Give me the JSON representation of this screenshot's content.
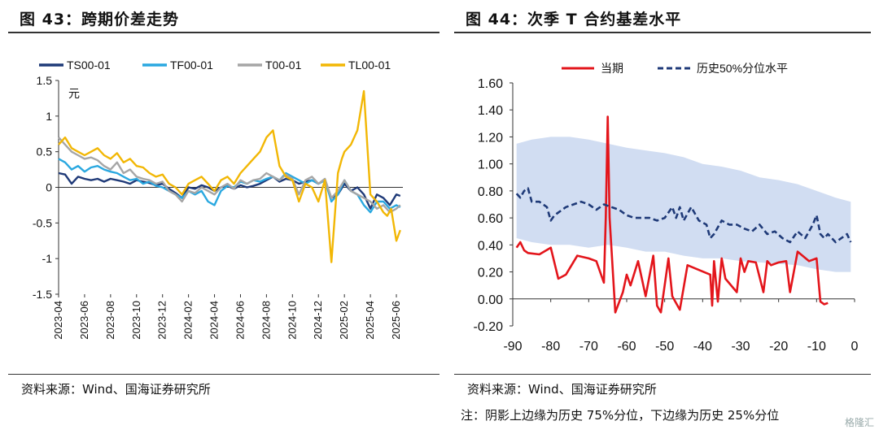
{
  "left": {
    "title": "图 43：跨期价差走势",
    "source": "资料来源：Wind、国海证券研究所"
  },
  "right": {
    "title": "图 44：次季 T 合约基差水平",
    "source": "资料来源：Wind、国海证券研究所",
    "note": "注：阴影上边缘为历史 75%分位，下边缘为历史 25%分位"
  },
  "watermark": "格隆汇",
  "chart_data": [
    {
      "type": "line",
      "unit_label": "元",
      "ylim": [
        -1.5,
        1.5
      ],
      "yticks": [
        -1.5,
        -1,
        -0.5,
        0,
        0.5,
        1,
        1.5
      ],
      "ytick_labels": [
        "-1.5",
        "-1",
        "-0.5",
        "0",
        "0.5",
        "1",
        "1.5"
      ],
      "xlim": [
        0,
        26.5
      ],
      "xticks": [
        0,
        2,
        4,
        6,
        8,
        10,
        12,
        14,
        16,
        18,
        20,
        22,
        24,
        26
      ],
      "xtick_labels": [
        "2023-04",
        "2023-06",
        "2023-08",
        "2023-10",
        "2023-12",
        "2024-02",
        "2024-04",
        "2024-06",
        "2024-08",
        "2024-10",
        "2024-12",
        "2025-02",
        "2025-04",
        "2025-06"
      ],
      "legend_position": "top",
      "series": [
        {
          "name": "TS00-01",
          "color": "#1f3a78",
          "x": [
            0,
            0.5,
            1,
            1.5,
            2,
            2.5,
            3,
            3.5,
            4,
            4.5,
            5,
            5.5,
            6,
            6.5,
            7,
            7.5,
            8,
            8.5,
            9,
            9.5,
            10,
            10.5,
            11,
            11.5,
            12,
            12.5,
            13,
            13.5,
            14,
            14.5,
            15,
            15.5,
            16,
            16.5,
            17,
            17.5,
            18,
            18.5,
            19,
            19.5,
            20,
            20.5,
            21,
            21.5,
            22,
            22.5,
            23,
            23.5,
            24,
            24.5,
            25,
            25.5,
            26,
            26.3
          ],
          "y": [
            0.2,
            0.18,
            0.05,
            0.15,
            0.12,
            0.1,
            0.12,
            0.08,
            0.12,
            0.1,
            0.08,
            0.05,
            0.1,
            0.08,
            0.06,
            0.03,
            0.05,
            -0.02,
            -0.08,
            -0.15,
            0,
            -0.02,
            0.03,
            0,
            -0.05,
            0,
            0.02,
            -0.02,
            0.03,
            0,
            0.02,
            0.05,
            0.1,
            0.15,
            0.08,
            0.12,
            0.1,
            0.05,
            0.08,
            0.1,
            0.05,
            0.1,
            -0.15,
            -0.1,
            0.05,
            -0.05,
            0,
            -0.1,
            -0.3,
            -0.1,
            -0.15,
            -0.25,
            -0.1,
            -0.12
          ]
        },
        {
          "name": "TF00-01",
          "color": "#2aa8e0",
          "x": [
            0,
            0.5,
            1,
            1.5,
            2,
            2.5,
            3,
            3.5,
            4,
            4.5,
            5,
            5.5,
            6,
            6.5,
            7,
            7.5,
            8,
            8.5,
            9,
            9.5,
            10,
            10.5,
            11,
            11.5,
            12,
            12.5,
            13,
            13.5,
            14,
            14.5,
            15,
            15.5,
            16,
            16.5,
            17,
            17.5,
            18,
            18.5,
            19,
            19.5,
            20,
            20.5,
            21,
            21.5,
            22,
            22.5,
            23,
            23.5,
            24,
            24.5,
            25,
            25.5,
            26,
            26.3
          ],
          "y": [
            0.4,
            0.35,
            0.25,
            0.3,
            0.22,
            0.28,
            0.3,
            0.25,
            0.22,
            0.2,
            0.15,
            0.1,
            0.12,
            0.05,
            0.08,
            0.02,
            0,
            -0.05,
            -0.1,
            -0.15,
            -0.05,
            -0.1,
            -0.05,
            -0.2,
            -0.25,
            -0.05,
            0.02,
            0,
            0.08,
            0.05,
            0.1,
            0.08,
            0.12,
            0.15,
            0.1,
            0.2,
            0.15,
            0.1,
            0.05,
            0.1,
            0.05,
            0.1,
            -0.2,
            -0.1,
            0.1,
            -0.05,
            -0.1,
            -0.25,
            -0.35,
            -0.2,
            -0.2,
            -0.3,
            -0.25,
            -0.28
          ]
        },
        {
          "name": "T00-01",
          "color": "#a6a6a6",
          "x": [
            0,
            0.5,
            1,
            1.5,
            2,
            2.5,
            3,
            3.5,
            4,
            4.5,
            5,
            5.5,
            6,
            6.5,
            7,
            7.5,
            8,
            8.5,
            9,
            9.5,
            10,
            10.5,
            11,
            11.5,
            12,
            12.5,
            13,
            13.5,
            14,
            14.5,
            15,
            15.5,
            16,
            16.5,
            17,
            17.5,
            18,
            18.5,
            19,
            19.5,
            20,
            20.5,
            21,
            21.5,
            22,
            22.5,
            23,
            23.5,
            24,
            24.5,
            25,
            25.5,
            26,
            26.3
          ],
          "y": [
            0.7,
            0.6,
            0.5,
            0.45,
            0.4,
            0.42,
            0.38,
            0.3,
            0.25,
            0.35,
            0.2,
            0.25,
            0.15,
            0.12,
            0.1,
            0.05,
            0.08,
            -0.05,
            -0.1,
            -0.2,
            -0.05,
            -0.08,
            0,
            -0.05,
            -0.1,
            0,
            0.05,
            -0.02,
            0.1,
            0.05,
            0.1,
            0.12,
            0.2,
            0.15,
            0.1,
            0.18,
            0.12,
            -0.1,
            0.1,
            0.15,
            0.05,
            0.12,
            -0.15,
            -0.05,
            0.1,
            -0.05,
            -0.1,
            -0.15,
            -0.2,
            -0.3,
            -0.25,
            -0.35,
            -0.3,
            -0.25
          ]
        },
        {
          "name": "TL00-01",
          "color": "#f2b705",
          "x": [
            0,
            0.5,
            1,
            1.5,
            2,
            2.5,
            3,
            3.5,
            4,
            4.5,
            5,
            5.5,
            6,
            6.5,
            7,
            7.5,
            8,
            8.5,
            9,
            9.5,
            10,
            10.5,
            11,
            11.5,
            12,
            12.5,
            13,
            13.5,
            14,
            14.5,
            15,
            15.5,
            16,
            16.5,
            17,
            17.5,
            18,
            18.5,
            19,
            19.5,
            20,
            20.5,
            21,
            21.5,
            21.8,
            22,
            22.5,
            23,
            23.5,
            24,
            24.5,
            25,
            25.3,
            25.6,
            26,
            26.3
          ],
          "y": [
            0.6,
            0.7,
            0.55,
            0.5,
            0.45,
            0.5,
            0.55,
            0.45,
            0.4,
            0.48,
            0.35,
            0.4,
            0.3,
            0.28,
            0.2,
            0.15,
            0.18,
            0.05,
            0,
            -0.1,
            0.05,
            0.1,
            0.15,
            0.05,
            -0.05,
            0.1,
            0.15,
            0.05,
            0.2,
            0.3,
            0.4,
            0.5,
            0.7,
            0.8,
            0.3,
            0.15,
            0.1,
            -0.2,
            0.05,
            0,
            -0.2,
            0.1,
            -1.05,
            0.2,
            0.4,
            0.5,
            0.6,
            0.8,
            1.35,
            -0.1,
            -0.2,
            -0.35,
            -0.4,
            -0.3,
            -0.75,
            -0.6
          ]
        }
      ]
    },
    {
      "type": "line",
      "xlim": [
        -90,
        0
      ],
      "ylim": [
        -0.2,
        1.6
      ],
      "yticks": [
        -0.2,
        0,
        0.2,
        0.4,
        0.6,
        0.8,
        1.0,
        1.2,
        1.4,
        1.6
      ],
      "ytick_labels": [
        "-0.20",
        "0.00",
        "0.20",
        "0.40",
        "0.60",
        "0.80",
        "1.00",
        "1.20",
        "1.40",
        "1.60"
      ],
      "xticks": [
        -90,
        -80,
        -70,
        -60,
        -50,
        -40,
        -30,
        -20,
        -10,
        0
      ],
      "xtick_labels": [
        "-90",
        "-80",
        "-70",
        "-60",
        "-50",
        "-40",
        "-30",
        "-20",
        "-10",
        "0"
      ],
      "legend_position": "top",
      "band": {
        "color": "#c9d7f0",
        "x": [
          -89,
          -85,
          -80,
          -75,
          -70,
          -65,
          -60,
          -55,
          -50,
          -45,
          -40,
          -35,
          -30,
          -25,
          -20,
          -15,
          -10,
          -5,
          -1
        ],
        "upper": [
          1.15,
          1.18,
          1.2,
          1.2,
          1.18,
          1.15,
          1.12,
          1.1,
          1.08,
          1.05,
          1.0,
          0.98,
          0.95,
          0.9,
          0.88,
          0.85,
          0.8,
          0.75,
          0.72
        ],
        "lower": [
          0.45,
          0.42,
          0.4,
          0.4,
          0.38,
          0.4,
          0.38,
          0.35,
          0.35,
          0.32,
          0.3,
          0.3,
          0.28,
          0.27,
          0.26,
          0.25,
          0.22,
          0.2,
          0.2
        ]
      },
      "series": [
        {
          "name": "当期",
          "color": "#e3151b",
          "x": [
            -89,
            -88,
            -87,
            -86,
            -83,
            -80,
            -78,
            -76,
            -73,
            -70,
            -68,
            -66,
            -65.5,
            -65,
            -64.5,
            -63,
            -61,
            -60,
            -59,
            -57,
            -55,
            -53,
            -52,
            -51,
            -49,
            -48,
            -46,
            -44,
            -38,
            -37.5,
            -37,
            -36,
            -35,
            -34,
            -31,
            -30,
            -29,
            -28,
            -26,
            -24,
            -23,
            -22,
            -20,
            -18,
            -17,
            -15,
            -12,
            -10,
            -9,
            -8,
            -7
          ],
          "y": [
            0.38,
            0.42,
            0.36,
            0.34,
            0.33,
            0.38,
            0.15,
            0.18,
            0.32,
            0.3,
            0.28,
            0.12,
            0.6,
            1.35,
            0.6,
            -0.1,
            0.05,
            0.18,
            0.1,
            0.28,
            0.02,
            0.32,
            -0.05,
            -0.1,
            0.3,
            0.02,
            -0.08,
            0.25,
            0.18,
            -0.05,
            0.28,
            -0.02,
            0.3,
            0.15,
            0.05,
            0.3,
            0.2,
            0.28,
            0.27,
            0.05,
            0.28,
            0.25,
            0.27,
            0.28,
            0.05,
            0.35,
            0.28,
            0.3,
            -0.02,
            -0.04,
            -0.03
          ]
        },
        {
          "name": "历史50%分位水平",
          "color": "#1f3a78",
          "dashed": true,
          "x": [
            -89,
            -88,
            -87,
            -86,
            -85,
            -83,
            -81,
            -80,
            -79,
            -78,
            -76,
            -74,
            -72,
            -70,
            -68,
            -66,
            -64,
            -62,
            -60,
            -58,
            -56,
            -54,
            -52,
            -50,
            -48,
            -47,
            -46,
            -45,
            -43,
            -41,
            -39,
            -38,
            -37,
            -35,
            -33,
            -31,
            -29,
            -27,
            -25,
            -23,
            -21,
            -19,
            -17,
            -15,
            -13,
            -11,
            -10,
            -9,
            -8,
            -7,
            -5,
            -3,
            -2,
            -1
          ],
          "y": [
            0.78,
            0.75,
            0.8,
            0.82,
            0.72,
            0.72,
            0.68,
            0.58,
            0.62,
            0.64,
            0.68,
            0.7,
            0.72,
            0.7,
            0.66,
            0.7,
            0.68,
            0.66,
            0.62,
            0.6,
            0.6,
            0.6,
            0.58,
            0.6,
            0.68,
            0.6,
            0.68,
            0.58,
            0.68,
            0.58,
            0.55,
            0.45,
            0.48,
            0.58,
            0.55,
            0.55,
            0.52,
            0.5,
            0.55,
            0.48,
            0.5,
            0.45,
            0.42,
            0.5,
            0.45,
            0.55,
            0.62,
            0.48,
            0.45,
            0.48,
            0.42,
            0.46,
            0.48,
            0.42
          ]
        }
      ]
    }
  ]
}
